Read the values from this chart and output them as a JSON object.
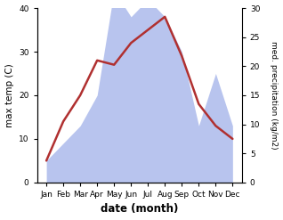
{
  "months": [
    "Jan",
    "Feb",
    "Mar",
    "Apr",
    "May",
    "Jun",
    "Jul",
    "Aug",
    "Sep",
    "Oct",
    "Nov",
    "Dec"
  ],
  "temperature": [
    5,
    14,
    20,
    28,
    27,
    32,
    35,
    38,
    29,
    18,
    13,
    10
  ],
  "precipitation": [
    5,
    9,
    13,
    20,
    44,
    38,
    42,
    38,
    30,
    13,
    25,
    13
  ],
  "temp_color": "#b03030",
  "precip_fill_color": "#b8c4ee",
  "left_ylim": [
    0,
    40
  ],
  "right_ylim": [
    0,
    30
  ],
  "left_yticks": [
    0,
    10,
    20,
    30,
    40
  ],
  "right_yticks": [
    0,
    5,
    10,
    15,
    20,
    25,
    30
  ],
  "xlabel": "date (month)",
  "ylabel_left": "max temp (C)",
  "ylabel_right": "med. precipitation (kg/m2)",
  "figsize": [
    3.18,
    2.47
  ],
  "dpi": 100
}
